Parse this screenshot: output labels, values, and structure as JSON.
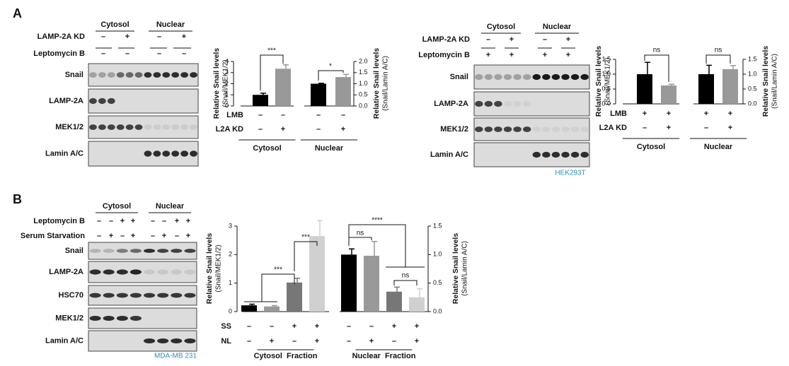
{
  "panel_labels": [
    "A",
    "B"
  ],
  "blots": [
    {
      "fractions": [
        "Cytosol",
        "Nuclear"
      ],
      "conditions": [
        {
          "label": "LAMP-2A KD",
          "marks": [
            "–",
            "+",
            "–",
            "+"
          ]
        },
        {
          "label": "Leptomycin B",
          "marks": [
            "–",
            "–",
            "–",
            "–"
          ]
        }
      ],
      "rows": [
        "Snail",
        "LAMP-2A",
        "MEK1/2",
        "Lamin A/C"
      ]
    },
    {
      "fractions": [
        "Cytosol",
        "Nuclear"
      ],
      "conditions": [
        {
          "label": "LAMP-2A KD",
          "marks": [
            "–",
            "+",
            "–",
            "+"
          ]
        },
        {
          "label": "Leptomycin B",
          "marks": [
            "+",
            "+",
            "+",
            "+"
          ]
        }
      ],
      "rows": [
        "Snail",
        "LAMP-2A",
        "MEK1/2",
        "Lamin A/C"
      ],
      "cell_line": "HEK293T"
    },
    {
      "fractions": [
        "Cytosol",
        "Nuclear"
      ],
      "conditions": [
        {
          "label": "Leptomycin B",
          "marks": [
            "–",
            "–",
            "+",
            "+",
            "–",
            "–",
            "+",
            "+"
          ]
        },
        {
          "label": "Serum Starvation",
          "marks": [
            "–",
            "+",
            "–",
            "+",
            "–",
            "+",
            "–",
            "+"
          ]
        }
      ],
      "rows": [
        "Snail",
        "LAMP-2A",
        "HSC70",
        "MEK1/2",
        "Lamin A/C"
      ],
      "cell_line": "MDA-MB 231"
    }
  ],
  "chart_data": [
    {
      "type": "bar",
      "ylabel": "Relative Snail levels",
      "ylabel_sub": "(Snail/MEK1/2)",
      "y2label": "Relative Snail levels",
      "y2label_sub": "(Snail/Lamin A/C)",
      "ylim": [
        0,
        4
      ],
      "yticks": [
        0,
        1,
        2,
        3,
        4
      ],
      "y2lim": [
        0,
        2
      ],
      "y2ticks": [
        {
          "value": 0,
          "label": "0.0"
        },
        0.5,
        {
          "value": 1,
          "label": "1.0"
        },
        1.5,
        {
          "value": 2,
          "label": "2.0"
        }
      ],
      "groups": [
        {
          "label": "Cytosol",
          "axis": "y",
          "values": [
            1.0,
            3.35
          ],
          "errors": [
            0.15,
            0.35
          ],
          "colors": [
            "#000000",
            "#999999"
          ]
        },
        {
          "label": "Nuclear",
          "axis": "y2",
          "values": [
            1.0,
            1.3
          ],
          "errors": [
            0.02,
            0.12
          ],
          "colors": [
            "#000000",
            "#999999"
          ]
        }
      ],
      "conditions": [
        {
          "label": "LMB",
          "marks": [
            "–",
            "–",
            "–",
            "–"
          ]
        },
        {
          "label": "L2A KD",
          "marks": [
            "–",
            "+",
            "–",
            "+"
          ]
        }
      ],
      "significance": [
        "***",
        "*"
      ]
    },
    {
      "type": "bar",
      "ylabel": "Relative Snail levels",
      "ylabel_sub": "(Snail/MEK1/2)",
      "y2label": "Relative Snail levels",
      "y2label_sub": "(Snail/Lamin A/C)",
      "ylim": [
        0,
        1.5
      ],
      "yticks": [
        {
          "value": 0,
          "label": "0.0"
        },
        0.5,
        {
          "value": 1,
          "label": "1.0"
        },
        1.5
      ],
      "y2lim": [
        0,
        1.5
      ],
      "y2ticks": [
        {
          "value": 0,
          "label": "0.0"
        },
        0.5,
        {
          "value": 1,
          "label": "1.0"
        },
        1.5
      ],
      "groups": [
        {
          "label": "Cytosol",
          "axis": "y",
          "values": [
            1.0,
            0.62
          ],
          "errors": [
            0.4,
            0.04
          ],
          "colors": [
            "#000000",
            "#999999"
          ]
        },
        {
          "label": "Nuclear",
          "axis": "y2",
          "values": [
            1.0,
            1.17
          ],
          "errors": [
            0.3,
            0.12
          ],
          "colors": [
            "#000000",
            "#999999"
          ]
        }
      ],
      "conditions": [
        {
          "label": "LMB",
          "marks": [
            "+",
            "+",
            "+",
            "+"
          ]
        },
        {
          "label": "L2A KD",
          "marks": [
            "–",
            "+",
            "–",
            "+"
          ]
        }
      ],
      "significance": [
        "ns",
        "ns"
      ]
    },
    {
      "type": "bar",
      "ylabel": "Relative Snail levels",
      "ylabel_sub": "(Snail/MEK1/2)",
      "y2label": "Relative Snail levels",
      "y2label_sub": "(Snail/Lamin A/C)",
      "ylim": [
        0,
        3
      ],
      "yticks": [
        0,
        1,
        2,
        3
      ],
      "y2lim": [
        0,
        1.5
      ],
      "y2ticks": [
        {
          "value": 0,
          "label": "0.0"
        },
        0.5,
        {
          "value": 1,
          "label": "1.0"
        },
        1.5
      ],
      "groups": [
        {
          "label": "Cytosol  Fraction",
          "axis": "y",
          "values": [
            0.22,
            0.18,
            1.02,
            2.65
          ],
          "errors": [
            0.04,
            0.03,
            0.15,
            0.55
          ],
          "colors": [
            "#000000",
            "#999999",
            "#777777",
            "#d0d0d0"
          ]
        },
        {
          "label": "Nuclear  Fraction",
          "axis": "y2",
          "values": [
            1.0,
            0.98,
            0.35,
            0.25
          ],
          "errors": [
            0.1,
            0.25,
            0.08,
            0.15
          ],
          "colors": [
            "#000000",
            "#999999",
            "#777777",
            "#d0d0d0"
          ]
        }
      ],
      "conditions": [
        {
          "label": "SS",
          "marks": [
            "–",
            "–",
            "+",
            "+",
            "–",
            "–",
            "+",
            "+"
          ]
        },
        {
          "label": "NL",
          "marks": [
            "–",
            "+",
            "–",
            "+",
            "–",
            "+",
            "–",
            "+"
          ]
        }
      ],
      "significance": [
        "***",
        "***",
        "ns",
        "****",
        "ns"
      ]
    }
  ]
}
